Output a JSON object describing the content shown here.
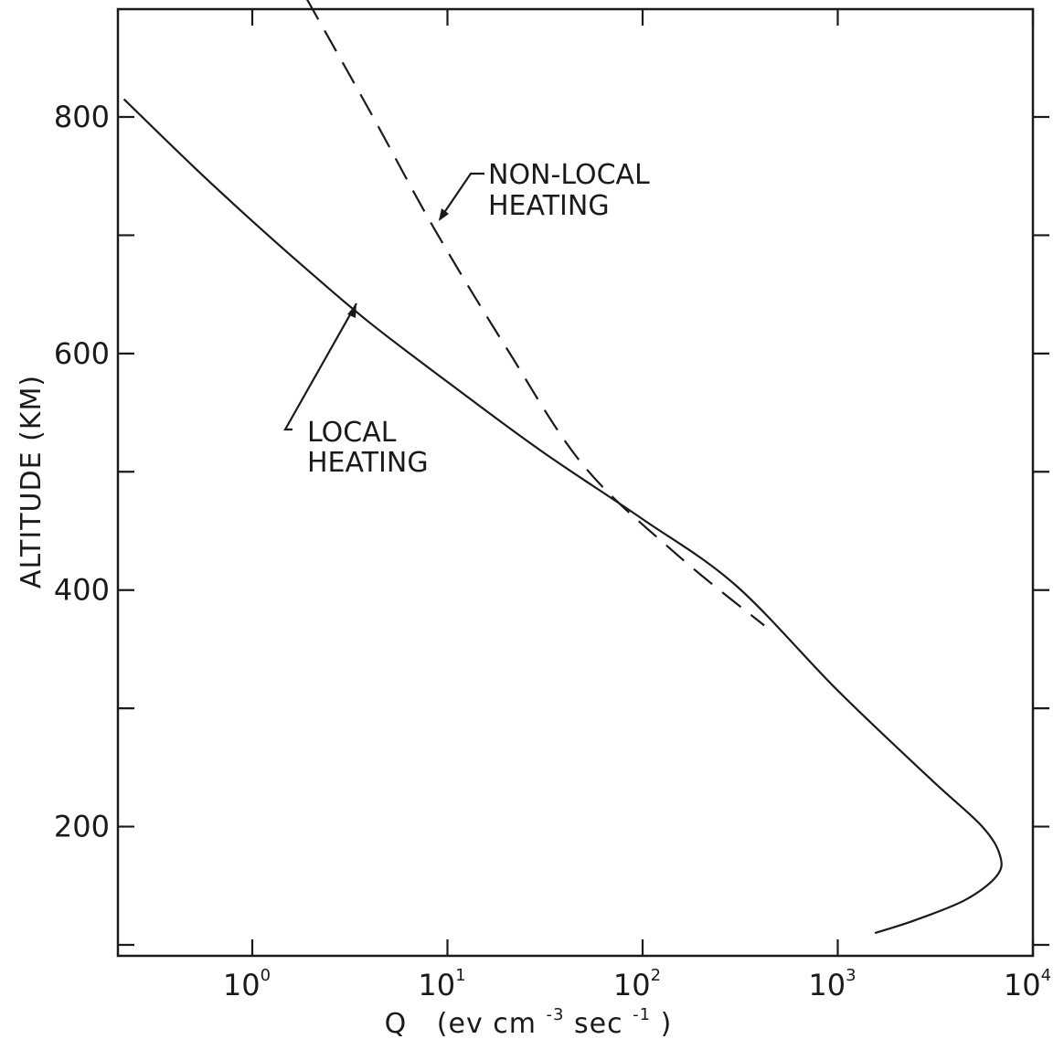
{
  "chart_data": {
    "type": "line",
    "title": "",
    "xlabel": {
      "base": "Q",
      "units_open": "(ev cm",
      "cm_exponent": "-3",
      "sec_word": " sec",
      "sec_exponent": "-1",
      "units_close": " )"
    },
    "ylabel": "ALTITUDE (KM)",
    "xscale": "log",
    "xlim": [
      0.22,
      10000
    ],
    "ylim": [
      100,
      900
    ],
    "xticks": [
      {
        "value": 1,
        "base": "10",
        "exponent": "0"
      },
      {
        "value": 10,
        "base": "10",
        "exponent": "1"
      },
      {
        "value": 100,
        "base": "10",
        "exponent": "2"
      },
      {
        "value": 1000,
        "base": "10",
        "exponent": "3"
      },
      {
        "value": 10000,
        "base": "10",
        "exponent": "4"
      }
    ],
    "yticks": [
      100,
      200,
      300,
      400,
      500,
      600,
      700,
      800,
      900
    ],
    "ytick_labels": [
      {
        "value": 200,
        "label": "200"
      },
      {
        "value": 400,
        "label": "400"
      },
      {
        "value": 600,
        "label": "600"
      },
      {
        "value": 800,
        "label": "800"
      }
    ],
    "grid": false,
    "series": [
      {
        "style": "solid",
        "annotation": [
          "LOCAL",
          "HEATING"
        ],
        "points": [
          {
            "x": 0.22,
            "y": 815
          },
          {
            "x": 0.5,
            "y": 758
          },
          {
            "x": 1,
            "y": 712
          },
          {
            "x": 2,
            "y": 668
          },
          {
            "x": 4,
            "y": 626
          },
          {
            "x": 10,
            "y": 576
          },
          {
            "x": 30,
            "y": 518
          },
          {
            "x": 100,
            "y": 460
          },
          {
            "x": 300,
            "y": 404
          },
          {
            "x": 1000,
            "y": 315
          },
          {
            "x": 3000,
            "y": 240
          },
          {
            "x": 5500,
            "y": 200
          },
          {
            "x": 6800,
            "y": 175
          },
          {
            "x": 6500,
            "y": 158
          },
          {
            "x": 4500,
            "y": 138
          },
          {
            "x": 2500,
            "y": 121
          },
          {
            "x": 1550,
            "y": 110
          }
        ]
      },
      {
        "style": "dashed",
        "annotation": [
          "NON-LOCAL",
          "HEATING"
        ],
        "points": [
          {
            "x": 1.9,
            "y": 900
          },
          {
            "x": 4,
            "y": 805
          },
          {
            "x": 8.6,
            "y": 705
          },
          {
            "x": 20,
            "y": 605
          },
          {
            "x": 50,
            "y": 505
          },
          {
            "x": 150,
            "y": 430
          },
          {
            "x": 420,
            "y": 370
          }
        ]
      }
    ]
  }
}
